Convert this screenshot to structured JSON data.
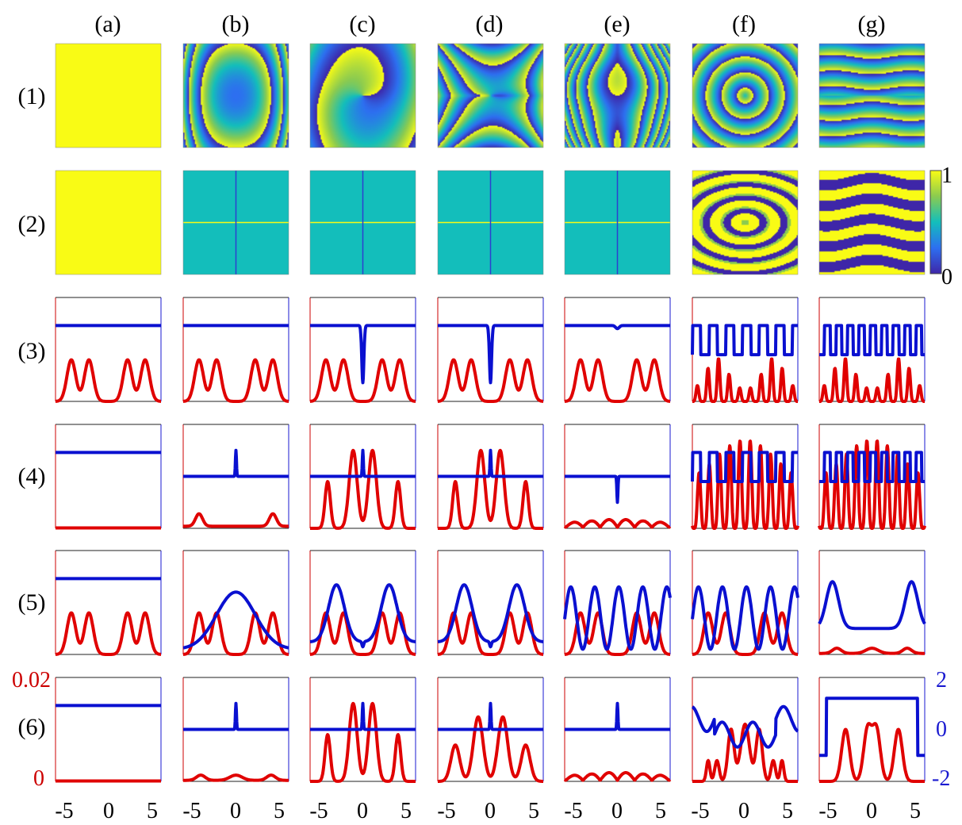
{
  "figure": {
    "column_labels": [
      "(a)",
      "(b)",
      "(c)",
      "(d)",
      "(e)",
      "(f)",
      "(g)"
    ],
    "row_labels": [
      "(1)",
      "(2)",
      "(3)",
      "(4)",
      "(5)",
      "(6)"
    ],
    "x_tick_labels": [
      "-5",
      "0",
      "5"
    ],
    "left_axis_ticks": [
      "0.02",
      "0"
    ],
    "right_axis_ticks": [
      "2",
      "0",
      "-2"
    ],
    "colorbar_ticks": [
      "1",
      "0"
    ],
    "colors": {
      "red_series": "#e00000",
      "blue_series": "#0a10d0",
      "left_axis": "#cc0000",
      "right_axis": "#1a1ad0",
      "colormap": [
        "#3e26a8",
        "#2d6ff0",
        "#13bebb",
        "#8bcb50",
        "#f9fb15"
      ]
    }
  },
  "chart_data": {
    "type": "panel-grid",
    "columns": [
      "(a)",
      "(b)",
      "(c)",
      "(d)",
      "(e)",
      "(f)",
      "(g)"
    ],
    "image_rows": {
      "rows": [
        "(1)",
        "(2)"
      ],
      "colormap": "parula",
      "clim": [
        0,
        1
      ],
      "patterns": {
        "row1": [
          "uniform-1",
          "vertical-band",
          "dipole-fringes",
          "x-fringes",
          "vertical-fringes",
          "concentric-rings",
          "wavy-horizontal-stripes"
        ],
        "row2": [
          "uniform-1",
          "cross-spectrum",
          "cross-spectrum",
          "cross-spectrum",
          "cross-spectrum",
          "concentric-rings",
          "wavy-horizontal-stripes"
        ]
      }
    },
    "line_rows": {
      "rows": [
        "(3)",
        "(4)",
        "(5)",
        "(6)"
      ],
      "xlim": [
        -6,
        6
      ],
      "xticks": [
        -5,
        0,
        5
      ],
      "left_ylim": [
        0,
        0.02
      ],
      "right_ylim": [
        -2,
        2
      ],
      "series": [
        {
          "name": "red (left axis)",
          "color": "#e00000"
        },
        {
          "name": "blue (right axis)",
          "color": "#0a10d0"
        }
      ],
      "panels": [
        [
          {
            "red": "four-peaks",
            "blue": "flat-high"
          },
          {
            "red": "four-peaks",
            "blue": "flat-high"
          },
          {
            "red": "four-peaks",
            "blue": "flat-high-dip-deep"
          },
          {
            "red": "four-peaks",
            "blue": "flat-high-dip-deep"
          },
          {
            "red": "four-peaks",
            "blue": "flat-high-dip-small"
          },
          {
            "red": "many-narrow-peaks",
            "blue": "square-wave"
          },
          {
            "red": "many-narrow-peaks",
            "blue": "square-wave-fast"
          }
        ],
        [
          {
            "red": "zero",
            "blue": "flat-high"
          },
          {
            "red": "small-side-bumps",
            "blue": "mid-with-spike"
          },
          {
            "red": "tall-central-pair",
            "blue": "mid-with-spike"
          },
          {
            "red": "tall-central-pair",
            "blue": "mid-with-spike"
          },
          {
            "red": "small-ripples",
            "blue": "mid-with-dip"
          },
          {
            "red": "dense-peaks",
            "blue": "square-wave"
          },
          {
            "red": "dense-peaks",
            "blue": "square-wave-fast"
          }
        ],
        [
          {
            "red": "four-peaks",
            "blue": "flat-high"
          },
          {
            "red": "four-peaks",
            "blue": "broad-gaussian"
          },
          {
            "red": "four-peaks",
            "blue": "two-humps"
          },
          {
            "red": "four-peaks",
            "blue": "two-humps"
          },
          {
            "red": "four-peaks",
            "blue": "multi-oscillation"
          },
          {
            "red": "four-peaks",
            "blue": "multi-oscillation"
          },
          {
            "red": "tiny-bumps",
            "blue": "two-plateaus"
          }
        ],
        [
          {
            "red": "zero",
            "blue": "flat-high"
          },
          {
            "red": "tiny-bumps",
            "blue": "mid-with-spike"
          },
          {
            "red": "tall-central-pair",
            "blue": "mid-with-spike"
          },
          {
            "red": "triple-peaks",
            "blue": "mid-with-spike"
          },
          {
            "red": "small-ripples",
            "blue": "mid-with-spike"
          },
          {
            "red": "irregular-peaks",
            "blue": "irregular-step"
          },
          {
            "red": "three-peaks",
            "blue": "plateau-box"
          }
        ]
      ]
    }
  }
}
